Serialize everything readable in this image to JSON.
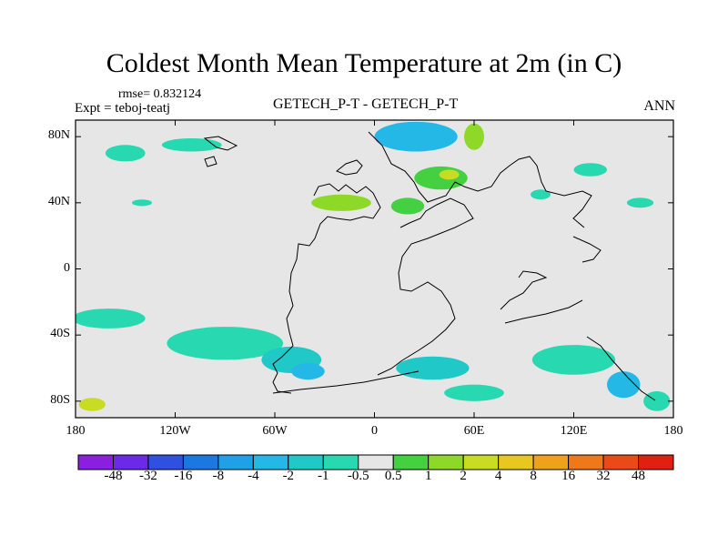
{
  "title": "Coldest Month Mean Temperature at 2m (in C)",
  "rmse": "rmse= 0.832124",
  "expt": "Expt = teboj-teatj",
  "center_title": "GETECH_P-T - GETECH_P-T",
  "right_title": "ANN",
  "lat_ticks": [
    {
      "value": 80,
      "label": "80N"
    },
    {
      "value": 40,
      "label": "40N"
    },
    {
      "value": 0,
      "label": "0"
    },
    {
      "value": -40,
      "label": "40S"
    },
    {
      "value": -80,
      "label": "80S"
    }
  ],
  "lon_ticks": [
    {
      "value": -180,
      "label": "180"
    },
    {
      "value": -120,
      "label": "120W"
    },
    {
      "value": -60,
      "label": "60W"
    },
    {
      "value": 0,
      "label": "0"
    },
    {
      "value": 60,
      "label": "60E"
    },
    {
      "value": 120,
      "label": "120E"
    },
    {
      "value": 180,
      "label": "180"
    }
  ],
  "colorbar": {
    "colors": [
      "#8b1fe0",
      "#6a2ae8",
      "#3050e0",
      "#1a78e0",
      "#20a0e6",
      "#24b8e6",
      "#20c8c8",
      "#28d8b0",
      "#e6e6e6",
      "#44d040",
      "#8ed828",
      "#c8dc24",
      "#e6c820",
      "#eea21c",
      "#ee781a",
      "#ea4a18",
      "#e02010"
    ],
    "labels": [
      "-48",
      "-32",
      "-16",
      "-8",
      "-4",
      "-2",
      "-1",
      "-0.5",
      "0.5",
      "1",
      "2",
      "4",
      "8",
      "16",
      "32",
      "48"
    ]
  },
  "anomaly_patches": [
    {
      "lon": -150,
      "lat": 70,
      "rlon": 12,
      "rlat": 5,
      "color": "#28d8b0"
    },
    {
      "lon": -110,
      "lat": 75,
      "rlon": 18,
      "rlat": 4,
      "color": "#28d8b0"
    },
    {
      "lon": -140,
      "lat": 40,
      "rlon": 6,
      "rlat": 2,
      "color": "#28d8b0"
    },
    {
      "lon": 25,
      "lat": 80,
      "rlon": 25,
      "rlat": 9,
      "color": "#24b8e6"
    },
    {
      "lon": 40,
      "lat": 55,
      "rlon": 16,
      "rlat": 7,
      "color": "#44d040"
    },
    {
      "lon": 45,
      "lat": 57,
      "rlon": 6,
      "rlat": 3,
      "color": "#c8dc24"
    },
    {
      "lon": 60,
      "lat": 80,
      "rlon": 6,
      "rlat": 8,
      "color": "#8ed828"
    },
    {
      "lon": -20,
      "lat": 40,
      "rlon": 18,
      "rlat": 5,
      "color": "#8ed828"
    },
    {
      "lon": 20,
      "lat": 38,
      "rlon": 10,
      "rlat": 5,
      "color": "#44d040"
    },
    {
      "lon": 130,
      "lat": 60,
      "rlon": 10,
      "rlat": 4,
      "color": "#28d8b0"
    },
    {
      "lon": 100,
      "lat": 45,
      "rlon": 6,
      "rlat": 3,
      "color": "#28d8b0"
    },
    {
      "lon": 160,
      "lat": 40,
      "rlon": 8,
      "rlat": 3,
      "color": "#28d8b0"
    },
    {
      "lon": -160,
      "lat": -30,
      "rlon": 22,
      "rlat": 6,
      "color": "#28d8b0"
    },
    {
      "lon": -90,
      "lat": -45,
      "rlon": 35,
      "rlat": 10,
      "color": "#28d8b0"
    },
    {
      "lon": -50,
      "lat": -55,
      "rlon": 18,
      "rlat": 8,
      "color": "#20c8c8"
    },
    {
      "lon": -40,
      "lat": -62,
      "rlon": 10,
      "rlat": 5,
      "color": "#24b8e6"
    },
    {
      "lon": 35,
      "lat": -60,
      "rlon": 22,
      "rlat": 7,
      "color": "#20c8c8"
    },
    {
      "lon": 60,
      "lat": -75,
      "rlon": 18,
      "rlat": 5,
      "color": "#28d8b0"
    },
    {
      "lon": 120,
      "lat": -55,
      "rlon": 25,
      "rlat": 9,
      "color": "#28d8b0"
    },
    {
      "lon": 150,
      "lat": -70,
      "rlon": 10,
      "rlat": 8,
      "color": "#24b8e6"
    },
    {
      "lon": -170,
      "lat": -82,
      "rlon": 8,
      "rlat": 4,
      "color": "#c8dc24"
    },
    {
      "lon": 170,
      "lat": -80,
      "rlon": 8,
      "rlat": 6,
      "color": "#28d8b0"
    }
  ]
}
